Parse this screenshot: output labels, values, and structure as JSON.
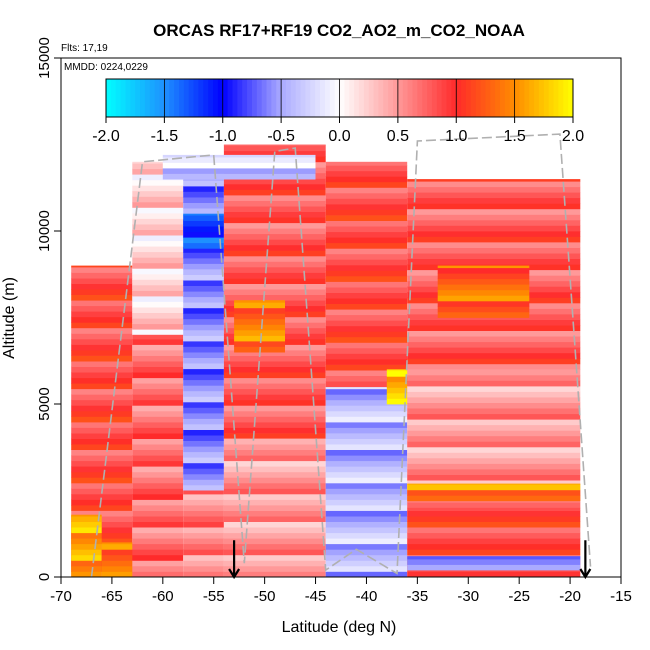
{
  "chart_data": {
    "type": "heatmap",
    "title": "ORCAS RF17+RF19 CO2_AO2_m_CO2_NOAA",
    "annotations": {
      "flights": "Flts: 17,19",
      "dates": "MMDD: 0224,0229"
    },
    "xlabel": "Latitude (deg N)",
    "ylabel": "Altitude (m)",
    "xlim": [
      -70,
      -15
    ],
    "ylim": [
      0,
      15000
    ],
    "xticks": [
      -70,
      -65,
      -60,
      -55,
      -50,
      -45,
      -40,
      -35,
      -30,
      -25,
      -20,
      -15
    ],
    "xtick_labels": [
      "-70",
      "-65",
      "-60",
      "-55",
      "-50",
      "-45",
      "-40",
      "-35",
      "-30",
      "-25",
      "-20",
      "-15"
    ],
    "yticks": [
      0,
      5000,
      10000,
      15000
    ],
    "ytick_labels": [
      "0",
      "5000",
      "10000",
      "15000"
    ],
    "colorbar": {
      "range": [
        -2.0,
        2.0
      ],
      "ticks": [
        -2.0,
        -1.5,
        -1.0,
        -0.5,
        0.0,
        0.5,
        1.0,
        1.5,
        2.0
      ],
      "tick_labels": [
        "-2.0",
        "-1.5",
        "-1.0",
        "-0.5",
        "0.0",
        "0.5",
        "1.0",
        "1.5",
        "2.0"
      ],
      "stops": [
        {
          "v": -2.0,
          "color": "#00ffff"
        },
        {
          "v": -1.5,
          "color": "#1e90ff"
        },
        {
          "v": -1.0,
          "color": "#0000ff"
        },
        {
          "v": -0.5,
          "color": "#aaaaff"
        },
        {
          "v": 0.0,
          "color": "#ffffff"
        },
        {
          "v": 0.5,
          "color": "#ff9999"
        },
        {
          "v": 1.0,
          "color": "#ff2a2a"
        },
        {
          "v": 1.5,
          "color": "#ff8c00"
        },
        {
          "v": 2.0,
          "color": "#ffff00"
        }
      ]
    },
    "regions": [
      {
        "lat": [
          -69,
          -63
        ],
        "alt": [
          0,
          9000
        ],
        "value": 0.9
      },
      {
        "lat": [
          -69,
          -66
        ],
        "alt": [
          0,
          1800
        ],
        "value": 1.6
      },
      {
        "lat": [
          -66,
          -62
        ],
        "alt": [
          0,
          1000
        ],
        "value": 1.4
      },
      {
        "lat": [
          -63,
          -58
        ],
        "alt": [
          7000,
          12000
        ],
        "value": 0.2
      },
      {
        "lat": [
          -63,
          -58
        ],
        "alt": [
          0,
          7000
        ],
        "value": 0.7
      },
      {
        "lat": [
          -58,
          -54
        ],
        "alt": [
          2500,
          11500
        ],
        "value": -0.6
      },
      {
        "lat": [
          -58,
          -54
        ],
        "alt": [
          9500,
          10500
        ],
        "value": -1.2
      },
      {
        "lat": [
          -58,
          -54
        ],
        "alt": [
          0,
          2500
        ],
        "value": 0.6
      },
      {
        "lat": [
          -54,
          -44
        ],
        "alt": [
          4000,
          12500
        ],
        "value": 0.8
      },
      {
        "lat": [
          -53,
          -48
        ],
        "alt": [
          6500,
          8000
        ],
        "value": 1.4
      },
      {
        "lat": [
          -54,
          -44
        ],
        "alt": [
          0,
          4000
        ],
        "value": 0.5
      },
      {
        "lat": [
          -44,
          -36
        ],
        "alt": [
          0,
          5500
        ],
        "value": -0.4
      },
      {
        "lat": [
          -44,
          -36
        ],
        "alt": [
          5500,
          12000
        ],
        "value": 0.9
      },
      {
        "lat": [
          -38,
          -30
        ],
        "alt": [
          5000,
          6000
        ],
        "value": 1.8
      },
      {
        "lat": [
          -36,
          -19
        ],
        "alt": [
          6000,
          11500
        ],
        "value": 0.8
      },
      {
        "lat": [
          -33,
          -24
        ],
        "alt": [
          7500,
          9000
        ],
        "value": 1.3
      },
      {
        "lat": [
          -36,
          -19
        ],
        "alt": [
          2000,
          6000
        ],
        "value": 0.5
      },
      {
        "lat": [
          -36,
          -19
        ],
        "alt": [
          2200,
          2700
        ],
        "value": 1.5
      },
      {
        "lat": [
          -36,
          -19
        ],
        "alt": [
          0,
          2000
        ],
        "value": 0.9
      },
      {
        "lat": [
          -36,
          -19
        ],
        "alt": [
          200,
          600
        ],
        "value": -0.8
      },
      {
        "lat": [
          -60,
          -45
        ],
        "alt": [
          11500,
          12200
        ],
        "value": -0.3
      }
    ],
    "flight_track": [
      [
        -67,
        0
      ],
      [
        -62,
        12000
      ],
      [
        -55,
        12200
      ],
      [
        -52,
        400
      ],
      [
        -49,
        12300
      ],
      [
        -47,
        12400
      ],
      [
        -44,
        200
      ],
      [
        -41,
        800
      ],
      [
        -37,
        100
      ],
      [
        -35,
        12600
      ],
      [
        -21,
        12800
      ],
      [
        -18,
        300
      ]
    ],
    "markers": [
      {
        "label": "arrow",
        "lat": -53,
        "alt": 600
      },
      {
        "label": "arrow",
        "lat": -18.5,
        "alt": 600
      }
    ]
  }
}
